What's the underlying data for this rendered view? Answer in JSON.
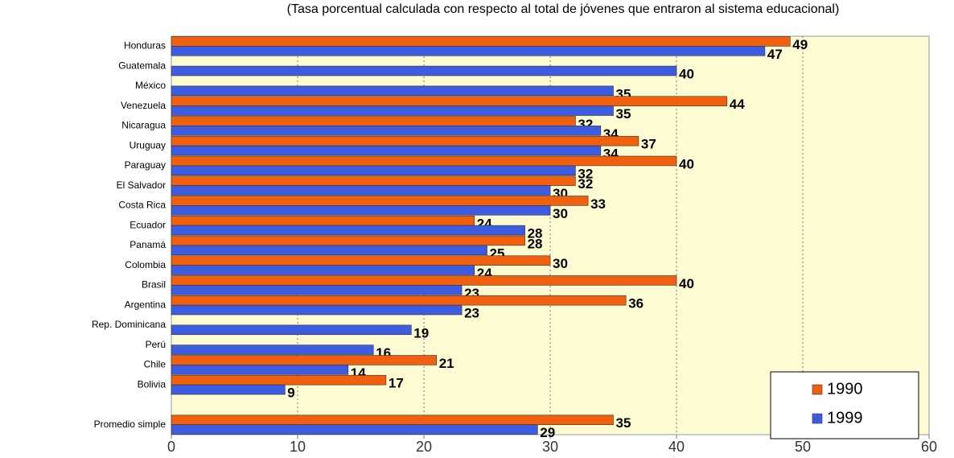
{
  "chart_data": {
    "type": "bar",
    "orientation": "horizontal",
    "subtitle": "(Tasa porcentual calculada con respecto al total de jóvenes que entraron al sistema educacional)",
    "categories": [
      "Honduras",
      "Guatemala",
      "México",
      "Venezuela",
      "Nicaragua",
      "Uruguay",
      "Paraguay",
      "El Salvador",
      "Costa Rica",
      "Ecuador",
      "Panamá",
      "Colombia",
      "Brasil",
      "Argentina",
      "Rep. Dominicana",
      "Perú",
      "Chile",
      "Bolivia",
      null,
      "Promedio simple"
    ],
    "series": [
      {
        "name": "1990",
        "color": "#f0600f",
        "values": [
          49,
          null,
          null,
          44,
          32,
          37,
          40,
          32,
          33,
          24,
          28,
          30,
          40,
          36,
          null,
          null,
          21,
          17,
          null,
          35
        ]
      },
      {
        "name": "1999",
        "color": "#3d5ce0",
        "values": [
          47,
          40,
          35,
          35,
          34,
          34,
          32,
          30,
          30,
          28,
          25,
          24,
          23,
          23,
          19,
          16,
          14,
          9,
          null,
          29
        ]
      }
    ],
    "xlim": [
      0,
      60
    ],
    "xticks": [
      0,
      10,
      20,
      30,
      40,
      50,
      60
    ],
    "grid": true,
    "legend": "lower right"
  }
}
